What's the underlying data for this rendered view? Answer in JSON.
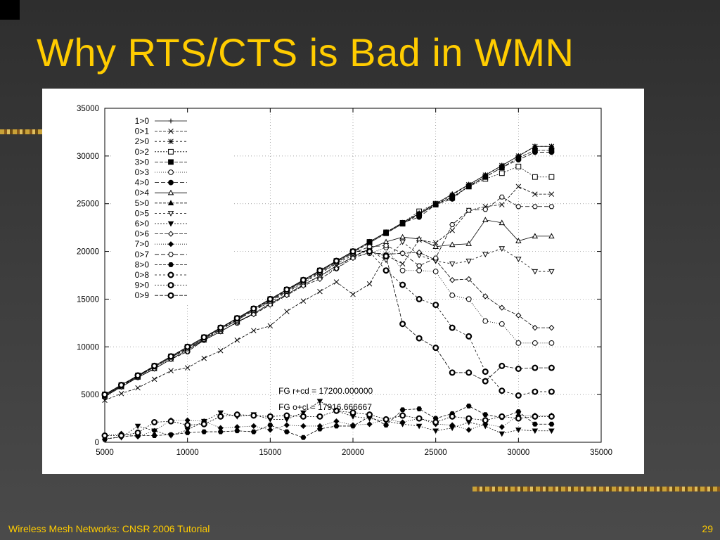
{
  "slide": {
    "title": "Why RTS/CTS is Bad in WMN",
    "footer": "Wireless Mesh Networks: CNSR 2006 Tutorial",
    "page_number": "29"
  },
  "colors": {
    "background": "#3a3a3a",
    "title": "#ffcc00",
    "footer": "#ffcc00"
  },
  "chart_data": {
    "type": "line",
    "title": "",
    "xlabel": "",
    "ylabel": "",
    "xlim": [
      5000,
      35000
    ],
    "ylim": [
      0,
      35000
    ],
    "xticks": [
      "5000",
      "10000",
      "15000",
      "20000",
      "25000",
      "30000",
      "35000"
    ],
    "yticks": [
      "0",
      "5000",
      "10000",
      "15000",
      "20000",
      "25000",
      "30000",
      "35000"
    ],
    "grid": true,
    "legend_position": "top-left",
    "x": [
      5000,
      6000,
      7000,
      8000,
      9000,
      10000,
      11000,
      12000,
      13000,
      14000,
      15000,
      16000,
      17000,
      18000,
      19000,
      20000,
      21000,
      22000,
      23000,
      24000,
      25000,
      26000,
      27000,
      28000,
      29000,
      30000,
      31000,
      32000
    ],
    "series": [
      {
        "name": "1>0",
        "marker": "plus",
        "values": [
          5000,
          6000,
          7000,
          8000,
          9000,
          10000,
          11000,
          12000,
          13000,
          14000,
          15000,
          16000,
          17000,
          18000,
          19000,
          20000,
          21000,
          22000,
          23000,
          24000,
          25000,
          26000,
          27000,
          28000,
          29000,
          30000,
          31000,
          31000
        ]
      },
      {
        "name": "0>1",
        "marker": "x",
        "values": [
          4400,
          5100,
          5700,
          6600,
          7500,
          7800,
          8800,
          9600,
          10700,
          11700,
          12200,
          13700,
          14800,
          15800,
          16800,
          15500,
          16600,
          19600,
          18700,
          21200,
          20900,
          22200,
          24300,
          24700,
          24900,
          26800,
          26000,
          26000
        ]
      },
      {
        "name": "2>0",
        "marker": "star",
        "values": [
          5000,
          6000,
          7000,
          7900,
          8900,
          9900,
          10900,
          11900,
          12900,
          13900,
          14900,
          15900,
          16900,
          17900,
          18900,
          19900,
          20900,
          21900,
          22900,
          23900,
          24900,
          25900,
          27000,
          28000,
          29000,
          30000,
          31000,
          31000
        ]
      },
      {
        "name": "0>2",
        "marker": "square-open",
        "values": [
          5000,
          6000,
          7000,
          8000,
          9000,
          10000,
          11000,
          12000,
          13000,
          14000,
          15000,
          16000,
          17000,
          18000,
          19000,
          20000,
          21000,
          22000,
          23000,
          24200,
          25000,
          25600,
          26800,
          27600,
          28200,
          28900,
          27800,
          27800
        ]
      },
      {
        "name": "3>0",
        "marker": "square-filled",
        "values": [
          4900,
          5900,
          6900,
          7900,
          8900,
          9900,
          10900,
          11900,
          12900,
          13900,
          14900,
          15900,
          16900,
          17900,
          18900,
          19900,
          20900,
          21900,
          22900,
          23900,
          24900,
          25700,
          26800,
          27800,
          28800,
          29800,
          30600,
          30600
        ]
      },
      {
        "name": "0>3",
        "marker": "circle-open",
        "values": [
          4800,
          5900,
          6800,
          7800,
          8800,
          9500,
          10700,
          11700,
          12500,
          13500,
          14600,
          15500,
          16500,
          17500,
          18200,
          19500,
          19800,
          20400,
          18000,
          18000,
          17900,
          15400,
          15000,
          12700,
          12400,
          10400,
          10400,
          10400
        ]
      },
      {
        "name": "4>0",
        "marker": "circle-filled",
        "values": [
          5000,
          6000,
          7000,
          8000,
          9000,
          10000,
          11000,
          12000,
          13000,
          14000,
          15000,
          16000,
          17000,
          18000,
          19000,
          20000,
          21000,
          22000,
          23000,
          23600,
          24900,
          25500,
          26900,
          27800,
          28800,
          29600,
          30400,
          30400
        ]
      },
      {
        "name": "0>4",
        "marker": "triangle-open",
        "values": [
          4800,
          5800,
          6800,
          7700,
          8700,
          9700,
          10700,
          11600,
          12600,
          13500,
          14500,
          15500,
          16500,
          17400,
          18500,
          19400,
          20300,
          21000,
          21500,
          21300,
          20500,
          20700,
          20800,
          23300,
          23000,
          21100,
          21600,
          21600
        ]
      },
      {
        "name": "5>0",
        "marker": "triangle-filled",
        "values": [
          5000,
          6000,
          7000,
          8000,
          9000,
          10000,
          11000,
          12000,
          13000,
          14000,
          15000,
          16000,
          17000,
          18000,
          19000,
          20000,
          21000,
          22000,
          23000,
          24000,
          25000,
          26000,
          27000,
          28000,
          29000,
          30000,
          31000,
          31000
        ]
      },
      {
        "name": "0>5",
        "marker": "triangle-down-open",
        "values": [
          4900,
          5900,
          6900,
          7900,
          8900,
          9800,
          10800,
          11800,
          12800,
          13800,
          14700,
          15700,
          16700,
          17700,
          18700,
          19600,
          20100,
          19100,
          21000,
          19600,
          19000,
          18700,
          19000,
          19700,
          20300,
          19200,
          17900,
          17900
        ]
      },
      {
        "name": "6>0",
        "marker": "triangle-down-filled",
        "values": [
          400,
          500,
          1700,
          1200,
          700,
          1300,
          2200,
          3100,
          2700,
          2900,
          2400,
          2400,
          3100,
          4300,
          3300,
          2700,
          2500,
          2200,
          1900,
          1700,
          1200,
          1500,
          2100,
          1700,
          900,
          1300,
          1200,
          1200
        ]
      },
      {
        "name": "0>6",
        "marker": "diamond-open",
        "values": [
          4800,
          5800,
          6800,
          7700,
          8700,
          9500,
          10700,
          11600,
          12600,
          13400,
          14400,
          15400,
          16400,
          17100,
          18200,
          19300,
          19900,
          19700,
          19800,
          19900,
          19100,
          17000,
          17100,
          15300,
          14100,
          13300,
          12000,
          12000
        ]
      },
      {
        "name": "7>0",
        "marker": "diamond-filled",
        "values": [
          700,
          900,
          600,
          1200,
          2300,
          2300,
          2200,
          1500,
          1600,
          1700,
          1300,
          1800,
          1700,
          1700,
          2200,
          1800,
          1900,
          2400,
          2100,
          2500,
          1900,
          1800,
          1300,
          1900,
          1600,
          2800,
          2800,
          2800
        ]
      },
      {
        "name": "0>7",
        "marker": "hexagon-open",
        "values": [
          4900,
          5900,
          6900,
          7900,
          8900,
          9800,
          10800,
          11800,
          12800,
          13800,
          14800,
          15800,
          16800,
          17800,
          18800,
          19800,
          20500,
          20600,
          19800,
          18500,
          19300,
          22800,
          24300,
          24400,
          25700,
          24700,
          24700,
          24700
        ]
      },
      {
        "name": "8>0",
        "marker": "hexagon-filled",
        "values": [
          300,
          600,
          700,
          700,
          800,
          1000,
          1100,
          1100,
          1200,
          1100,
          1800,
          1100,
          500,
          1400,
          1700,
          1700,
          2700,
          1800,
          3400,
          3500,
          2500,
          3000,
          3800,
          2900,
          2600,
          3200,
          1900,
          1900
        ]
      },
      {
        "name": "0>8",
        "marker": "circle-bold",
        "values": [
          5000,
          6000,
          7000,
          8000,
          9000,
          10000,
          11000,
          12000,
          13000,
          14000,
          15000,
          16000,
          17000,
          18000,
          19000,
          20000,
          20000,
          18000,
          16500,
          15000,
          14400,
          12000,
          11100,
          7400,
          5400,
          4900,
          5300,
          5300
        ]
      },
      {
        "name": "9>0",
        "marker": "circle-bold",
        "values": [
          700,
          700,
          1000,
          2100,
          2200,
          1800,
          1900,
          2700,
          2900,
          2800,
          2700,
          2800,
          2700,
          2700,
          3300,
          3100,
          2900,
          2400,
          2800,
          2500,
          2100,
          2700,
          2500,
          2300,
          2700,
          2500,
          2700,
          2700
        ]
      },
      {
        "name": "0>9",
        "marker": "circle-bold",
        "values": [
          5000,
          6000,
          7000,
          8000,
          9000,
          10000,
          11000,
          12000,
          13000,
          14000,
          15000,
          16000,
          17000,
          18000,
          19000,
          20000,
          20000,
          19500,
          12400,
          10900,
          9900,
          7300,
          7300,
          6400,
          8000,
          7700,
          7800,
          7800
        ]
      }
    ],
    "annotations": [
      {
        "text": "FG r+cd = 17200.000000",
        "x": 15500,
        "y": 5100
      },
      {
        "text": "FG o+cl = 17916.666667",
        "x": 15500,
        "y": 3400
      }
    ]
  }
}
